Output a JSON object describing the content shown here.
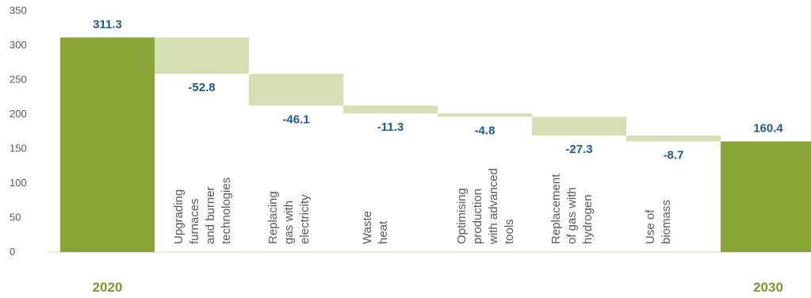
{
  "chart_data": {
    "type": "bar",
    "subtype": "waterfall",
    "ylim": [
      0,
      350
    ],
    "yticks": [
      "0",
      "50",
      "100",
      "150",
      "200",
      "250",
      "300",
      "350"
    ],
    "start": {
      "label": "2020",
      "value": 311.3,
      "value_label": "311.3"
    },
    "end": {
      "label": "2030",
      "value": 160.4,
      "value_label": "160.4"
    },
    "steps": [
      {
        "category": [
          "Upgrading",
          "furnaces",
          "and burner",
          "technologies"
        ],
        "value": -52.8,
        "value_label": "-52.8"
      },
      {
        "category": [
          "Replacing",
          "gas with",
          "electricity"
        ],
        "value": -46.1,
        "value_label": "-46.1"
      },
      {
        "category": [
          "Waste",
          "heat"
        ],
        "value": -11.3,
        "value_label": "-11.3"
      },
      {
        "category": [
          "Optimising",
          "production",
          "with advanced",
          "tools"
        ],
        "value": -4.8,
        "value_label": "-4.8"
      },
      {
        "category": [
          "Replacement",
          "of gas with",
          "hydrogen"
        ],
        "value": -27.3,
        "value_label": "-27.3"
      },
      {
        "category": [
          "Use of",
          "biomass"
        ],
        "value": -8.7,
        "value_label": "-8.7"
      }
    ],
    "colors": {
      "total": "#8aa335",
      "step": "#d6dfb4",
      "value_label": "#1f5a8c",
      "end_label": "#7a9a2e"
    }
  }
}
